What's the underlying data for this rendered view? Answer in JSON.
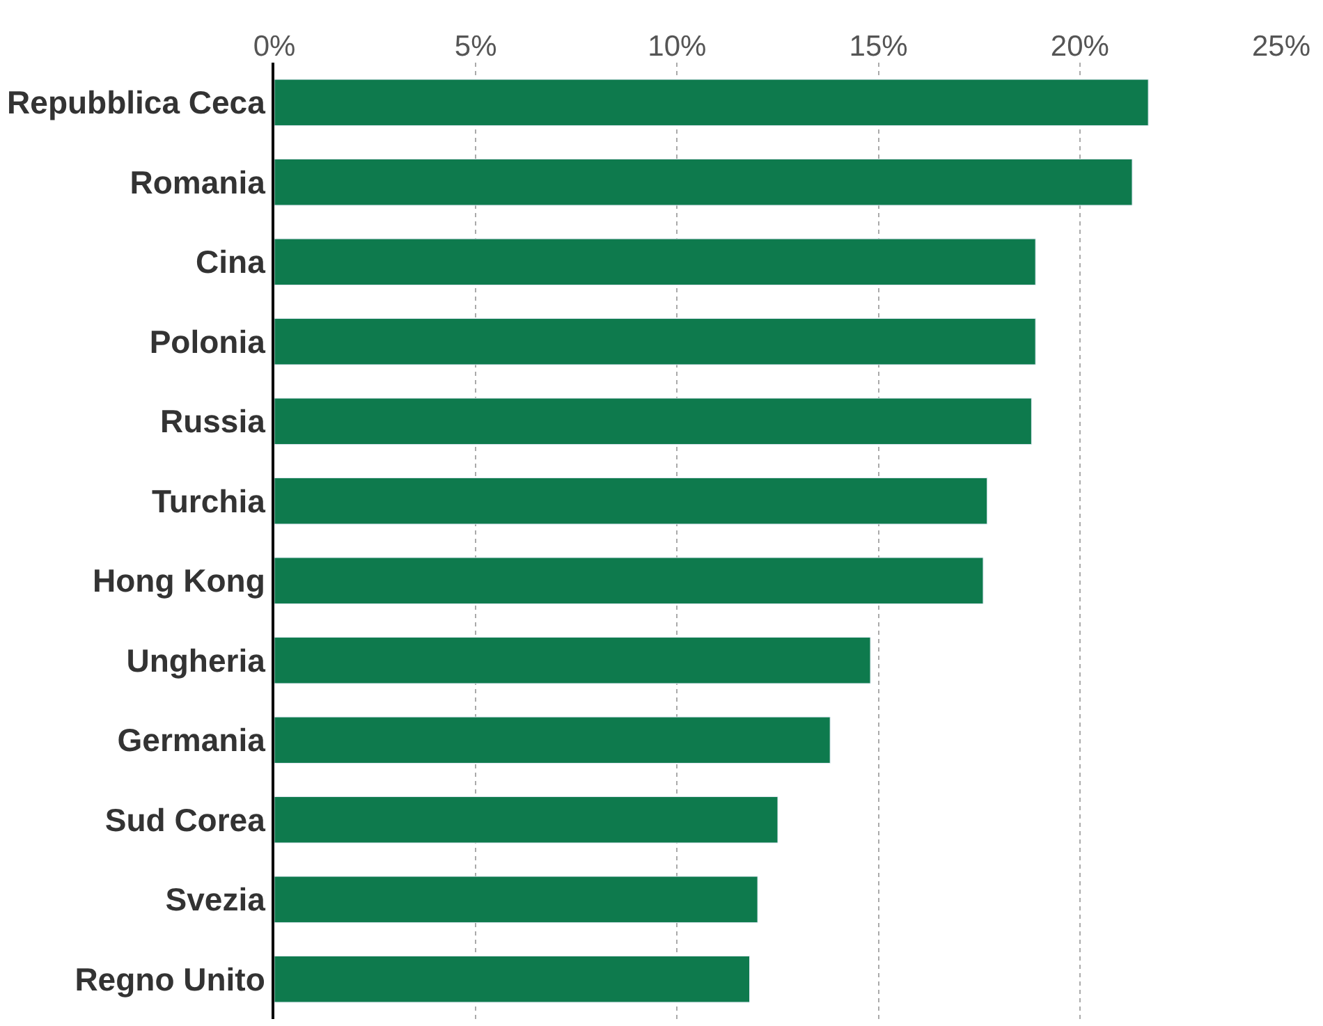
{
  "chart_data": {
    "type": "bar",
    "orientation": "horizontal",
    "categories": [
      "Repubblica Ceca",
      "Romania",
      "Cina",
      "Polonia",
      "Russia",
      "Turchia",
      "Hong Kong",
      "Ungheria",
      "Germania",
      "Sud Corea",
      "Svezia",
      "Regno Unito"
    ],
    "values": [
      21.7,
      21.3,
      18.9,
      18.9,
      18.8,
      17.7,
      17.6,
      14.8,
      13.8,
      12.5,
      12.0,
      11.8
    ],
    "color": "#0e7a4d",
    "xlim": [
      0,
      25
    ],
    "xticks": [
      {
        "value": 0,
        "label": "0%"
      },
      {
        "value": 5,
        "label": "5%"
      },
      {
        "value": 10,
        "label": "10%"
      },
      {
        "value": 15,
        "label": "15%"
      },
      {
        "value": 20,
        "label": "20%"
      },
      {
        "value": 25,
        "label": "25%"
      }
    ],
    "grid": "x"
  }
}
